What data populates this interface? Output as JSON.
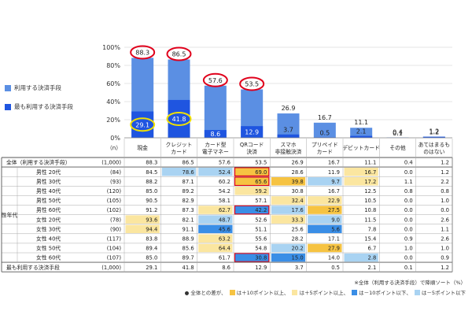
{
  "chart_data": {
    "type": "bar",
    "categories": [
      "現金",
      "クレジット\nカード",
      "カード型\n電子マネー",
      "QRコード\n決済",
      "スマホ\n非接触決済",
      "プリペイド\nカード",
      "デビットカード",
      "その他",
      "あてはまるも\nのはない"
    ],
    "series": [
      {
        "name": "利用する決済手段",
        "values": [
          88.3,
          86.5,
          57.6,
          53.5,
          26.9,
          16.7,
          11.1,
          0.4,
          1.2
        ]
      },
      {
        "name": "最も利用する決済手段",
        "values": [
          29.1,
          41.8,
          8.6,
          12.9,
          3.7,
          0.5,
          2.1,
          0.1,
          1.2
        ]
      }
    ],
    "yticks": [
      "0%",
      "20%",
      "40%",
      "60%",
      "80%",
      "100%"
    ],
    "ylim": [
      0,
      100
    ],
    "legend_position": "left",
    "highlighted": [
      "88.3",
      "86.5",
      "57.6",
      "53.5",
      "29.1",
      "41.8"
    ]
  },
  "colors": {
    "series1": "#5b8fe3",
    "series2": "#1f55e0",
    "red_circle": "#e0001b",
    "yellow_circle": "#f0e000",
    "up10": "#f6c342",
    "up5": "#fbe6a0",
    "down10": "#3a8ee6",
    "down5": "#a9d3f2",
    "grid": "#cccccc"
  },
  "table": {
    "n_label": "（n）",
    "group_label": "性年代",
    "rows": [
      {
        "label": "全体（利用する決済手段）",
        "n": "(1,000)",
        "values": [
          "88.3",
          "86.5",
          "57.6",
          "53.5",
          "26.9",
          "16.7",
          "11.1",
          "0.4",
          "1.2"
        ],
        "hl": [
          "",
          "",
          "",
          "",
          "",
          "",
          "",
          "",
          ""
        ]
      },
      {
        "label": "男性 20代",
        "n": "(84)",
        "values": [
          "84.5",
          "78.6",
          "52.4",
          "69.0",
          "28.6",
          "11.9",
          "16.7",
          "0.0",
          "1.2"
        ],
        "hl": [
          "",
          "d5",
          "d5",
          "u10",
          "",
          "",
          "u5",
          "",
          ""
        ]
      },
      {
        "label": "男性 30代",
        "n": "(93)",
        "values": [
          "88.2",
          "87.1",
          "60.2",
          "65.6",
          "39.8",
          "9.7",
          "17.2",
          "1.1",
          "2.2"
        ],
        "hl": [
          "",
          "",
          "",
          "u10",
          "u10",
          "d5",
          "u5",
          "",
          ""
        ]
      },
      {
        "label": "男性 40代",
        "n": "(120)",
        "values": [
          "85.0",
          "89.2",
          "54.2",
          "59.2",
          "30.8",
          "16.7",
          "12.5",
          "0.8",
          "0.8"
        ],
        "hl": [
          "",
          "",
          "",
          "u5",
          "",
          "",
          "",
          "",
          ""
        ]
      },
      {
        "label": "男性 50代",
        "n": "(105)",
        "values": [
          "90.5",
          "82.9",
          "58.1",
          "57.1",
          "32.4",
          "22.9",
          "10.5",
          "0.0",
          "1.0"
        ],
        "hl": [
          "",
          "",
          "",
          "",
          "u5",
          "u5",
          "",
          "",
          ""
        ]
      },
      {
        "label": "男性 60代",
        "n": "(102)",
        "values": [
          "91.2",
          "87.3",
          "62.7",
          "42.2",
          "17.6",
          "27.5",
          "10.8",
          "0.0",
          "0.0"
        ],
        "hl": [
          "",
          "",
          "u5",
          "d10",
          "d5",
          "u10",
          "",
          "",
          ""
        ]
      },
      {
        "label": "女性 20代",
        "n": "(78)",
        "values": [
          "93.6",
          "82.1",
          "48.7",
          "52.6",
          "33.3",
          "9.0",
          "11.5",
          "0.0",
          "2.6"
        ],
        "hl": [
          "u5",
          "",
          "d5",
          "",
          "u5",
          "d5",
          "",
          "",
          ""
        ]
      },
      {
        "label": "女性 30代",
        "n": "(90)",
        "values": [
          "94.4",
          "91.1",
          "45.6",
          "51.1",
          "25.6",
          "5.6",
          "7.8",
          "0.0",
          "1.1"
        ],
        "hl": [
          "u5",
          "",
          "d10",
          "",
          "",
          "d10",
          "",
          "",
          ""
        ]
      },
      {
        "label": "女性 40代",
        "n": "(117)",
        "values": [
          "83.8",
          "88.9",
          "63.2",
          "55.6",
          "28.2",
          "17.1",
          "15.4",
          "0.9",
          "2.6"
        ],
        "hl": [
          "",
          "",
          "u5",
          "",
          "",
          "",
          "",
          "",
          ""
        ]
      },
      {
        "label": "女性 50代",
        "n": "(104)",
        "values": [
          "89.4",
          "85.6",
          "64.4",
          "54.8",
          "20.2",
          "27.9",
          "6.7",
          "1.0",
          "1.0"
        ],
        "hl": [
          "",
          "",
          "u5",
          "",
          "d5",
          "u10",
          "",
          "",
          ""
        ]
      },
      {
        "label": "女性 60代",
        "n": "(107)",
        "values": [
          "85.0",
          "89.7",
          "61.7",
          "30.8",
          "15.0",
          "14.0",
          "2.8",
          "0.0",
          "0.9"
        ],
        "hl": [
          "",
          "",
          "",
          "d10",
          "d10",
          "",
          "d5",
          "",
          ""
        ]
      },
      {
        "label": "最も利用する決済手段",
        "n": "(1,000)",
        "values": [
          "29.1",
          "41.8",
          "8.6",
          "12.9",
          "3.7",
          "0.5",
          "2.1",
          "0.1",
          "1.2"
        ],
        "hl": [
          "",
          "",
          "",
          "",
          "",
          "",
          "",
          "",
          ""
        ]
      }
    ]
  },
  "footnotes": {
    "sort": "※全体（利用する決済手段）で降順ソート（%）",
    "legend_prefix": "● 全体との差が、",
    "legend_items": [
      {
        "key": "up10",
        "label": "は＋10ポイント以上、"
      },
      {
        "key": "up5",
        "label": "は＋5ポイント以上、"
      },
      {
        "key": "down10",
        "label": "は－10ポイント以下、"
      },
      {
        "key": "down5",
        "label": "は－5ポイント以下"
      }
    ]
  }
}
